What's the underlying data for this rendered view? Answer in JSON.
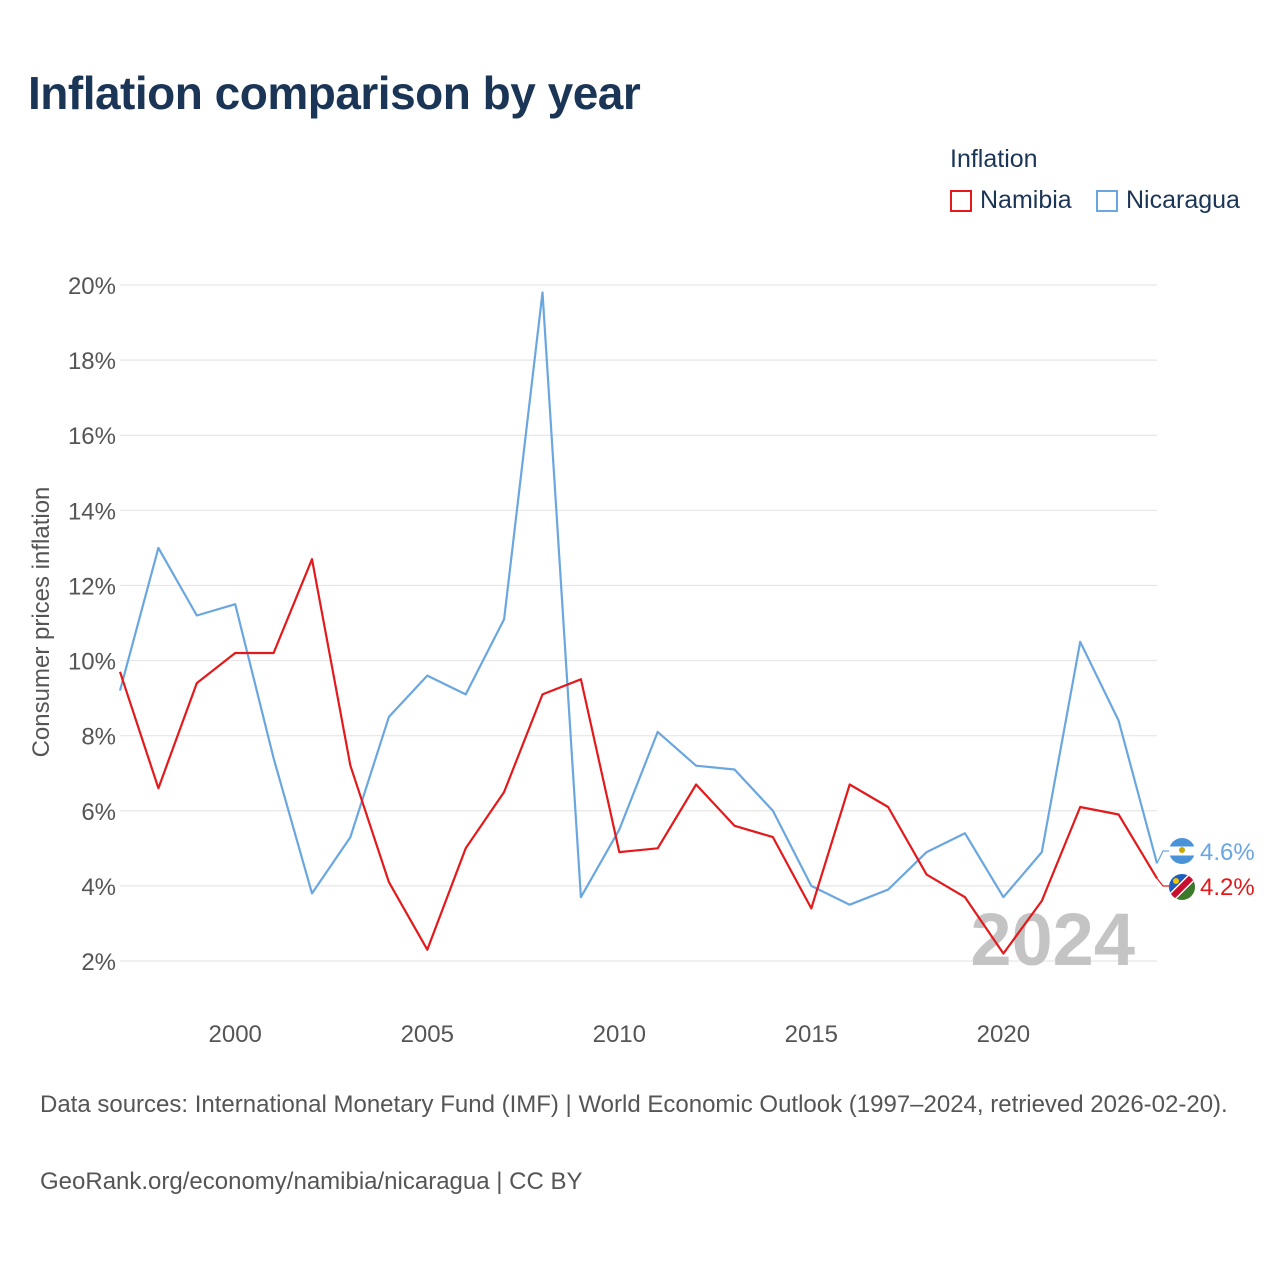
{
  "title": "Inflation comparison by year",
  "legend": {
    "title": "Inflation",
    "items": [
      {
        "label": "Namibia",
        "color": "#e3191b"
      },
      {
        "label": "Nicaragua",
        "color": "#6aa6e0"
      }
    ]
  },
  "footer": {
    "source": "Data sources: International Monetary Fund (IMF) | World Economic Outlook (1997–2024, retrieved 2026-02-20).",
    "credit": "GeoRank.org/economy/namibia/nicaragua | CC BY"
  },
  "chart_data": {
    "type": "line",
    "ylabel": "Consumer prices inflation",
    "xlabel": "",
    "watermark": "2024",
    "xlim": [
      1997,
      2024
    ],
    "ylim": [
      1.0,
      20.0
    ],
    "yticks": [
      2,
      4,
      6,
      8,
      10,
      12,
      14,
      16,
      18,
      20
    ],
    "ytick_labels": [
      "2%",
      "4%",
      "6%",
      "8%",
      "10%",
      "12%",
      "14%",
      "16%",
      "18%",
      "20%"
    ],
    "xticks": [
      2000,
      2005,
      2010,
      2015,
      2020
    ],
    "xtick_labels": [
      "2000",
      "2005",
      "2010",
      "2015",
      "2020"
    ],
    "x": [
      1997,
      1998,
      1999,
      2000,
      2001,
      2002,
      2003,
      2004,
      2005,
      2006,
      2007,
      2008,
      2009,
      2010,
      2011,
      2012,
      2013,
      2014,
      2015,
      2016,
      2017,
      2018,
      2019,
      2020,
      2021,
      2022,
      2023,
      2024
    ],
    "series": [
      {
        "name": "Namibia",
        "color": "#e3191b",
        "end_label": "4.2%",
        "values": [
          9.7,
          6.6,
          9.4,
          10.2,
          10.2,
          12.7,
          7.2,
          4.1,
          2.3,
          5.0,
          6.5,
          9.1,
          9.5,
          4.9,
          5.0,
          6.7,
          5.6,
          5.3,
          3.4,
          6.7,
          6.1,
          4.3,
          3.7,
          2.2,
          3.6,
          6.1,
          5.9,
          4.2
        ]
      },
      {
        "name": "Nicaragua",
        "color": "#6aa6e0",
        "end_label": "4.6%",
        "values": [
          9.2,
          13.0,
          11.2,
          11.5,
          7.4,
          3.8,
          5.3,
          8.5,
          9.6,
          9.1,
          11.1,
          19.8,
          3.7,
          5.5,
          8.1,
          7.2,
          7.1,
          6.0,
          4.0,
          3.5,
          3.9,
          4.9,
          5.4,
          3.7,
          4.9,
          10.5,
          8.4,
          4.6
        ]
      }
    ]
  }
}
